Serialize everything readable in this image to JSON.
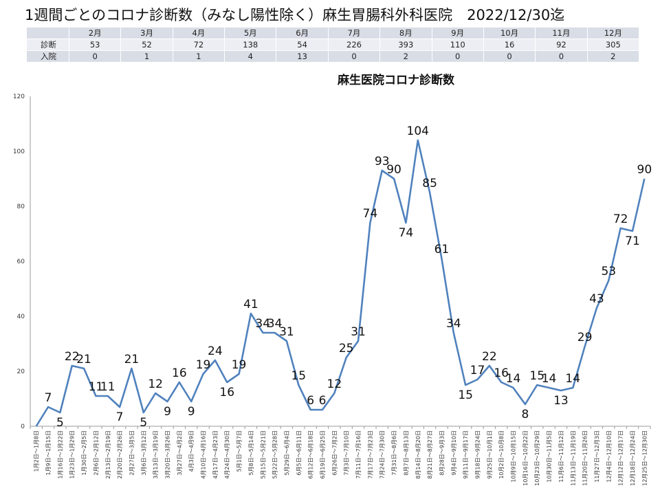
{
  "page": {
    "title": "1週間ごとのコロナ診断数（みなし陽性除く）麻生胃腸科外科医院　2022/12/30迄"
  },
  "summary_table": {
    "months": [
      "2月",
      "3月",
      "4月",
      "5月",
      "6月",
      "7月",
      "8月",
      "9月",
      "10月",
      "11月",
      "12月"
    ],
    "rows": [
      {
        "label": "診断",
        "values": [
          "53",
          "52",
          "72",
          "138",
          "54",
          "226",
          "393",
          "110",
          "16",
          "92",
          "305"
        ]
      },
      {
        "label": "入院",
        "values": [
          "0",
          "1",
          "1",
          "4",
          "13",
          "0",
          "2",
          "0",
          "0",
          "0",
          "2"
        ]
      }
    ]
  },
  "chart_data": {
    "type": "line",
    "title": "麻生医院コロナ診断数",
    "xlabel": "",
    "ylabel": "",
    "ylim": [
      0,
      120
    ],
    "yticks": [
      "0",
      "20",
      "40",
      "60",
      "80",
      "100",
      "120"
    ],
    "grid": false,
    "legend": "none",
    "line_color": "#4f81bd",
    "categories": [
      "1月2日～1月8日",
      "1月9日～1月15日",
      "1月16日～1月22日",
      "1月23日～1月29日",
      "1月30日～2月5日",
      "2月6日～2月12日",
      "2月13日～2月19日",
      "2月20日～2月26日",
      "2月27日～3月5日",
      "3月6日～3月12日",
      "3月13日～3月19日",
      "3月20日～3月26日",
      "3月27日～4月2日",
      "4月3日～4月9日",
      "4月10日～4月16日",
      "4月17日～4月23日",
      "4月24日～4月30日",
      "5月1日～5月7日",
      "5月8日～5月14日",
      "5月15日～5月21日",
      "5月22日～5月28日",
      "5月29日～6月4日",
      "6月5日～6月11日",
      "6月12日～6月18日",
      "6月19日～6月25日",
      "6月26日～7月2日",
      "7月3日～7月10日",
      "7月11日～7月16日",
      "7月17日～7月23日",
      "7月24日～7月30日",
      "7月31日～8月6日",
      "8月7日～8月13日",
      "8月14日～8月20日",
      "8月21日～8月27日",
      "8月28日～9月3日",
      "9月4日～9月10日",
      "9月11日～9月17日",
      "9月18日～9月24日",
      "9月25日～10月1日",
      "10月2日～10月8日",
      "10月9日～10月15日",
      "10月16日～10月22日",
      "10月23日～10月29日",
      "10月30日～11月5日",
      "11月6日～11月12日",
      "11月13日～11月19日",
      "11月20日～11月26日",
      "11月27日～12月3日",
      "12月4日～12月10日",
      "12月12日～12月17日",
      "12月18日～12月24日",
      "12月25日～12月30日"
    ],
    "values": [
      0,
      7,
      5,
      22,
      21,
      11,
      11,
      7,
      21,
      5,
      12,
      9,
      16,
      9,
      19,
      24,
      16,
      19,
      41,
      34,
      34,
      31,
      15,
      6,
      6,
      12,
      25,
      31,
      74,
      93,
      90,
      74,
      104,
      85,
      61,
      34,
      15,
      17,
      22,
      16,
      14,
      8,
      15,
      14,
      13,
      14,
      29,
      43,
      53,
      72,
      71,
      90
    ],
    "labels": [
      "",
      "7",
      "5",
      "22",
      "21",
      "11",
      "11",
      "7",
      "21",
      "5",
      "12",
      "9",
      "16",
      "9",
      "19",
      "24",
      "16",
      "19",
      "41",
      "34",
      "34",
      "31",
      "15",
      "6",
      "6",
      "12",
      "25",
      "31",
      "74",
      "93",
      "90",
      "74",
      "104",
      "85",
      "61",
      "34",
      "15",
      "17",
      "22",
      "16",
      "14",
      "8",
      "15",
      "14",
      "13",
      "14",
      "29",
      "43",
      "53",
      "72",
      "71",
      "90"
    ]
  }
}
